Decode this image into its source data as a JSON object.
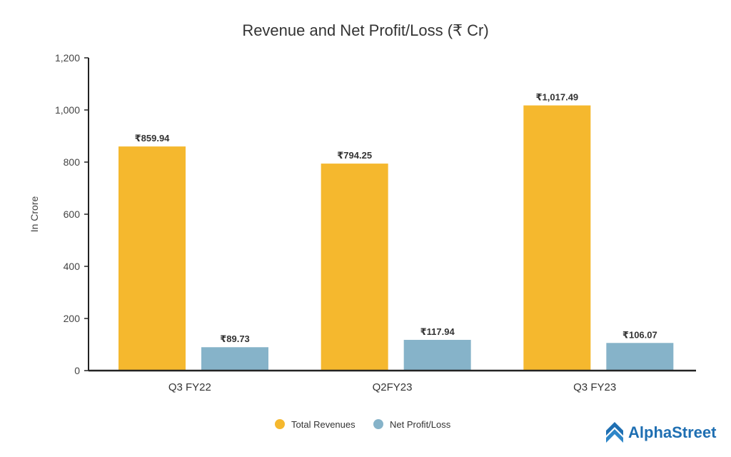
{
  "colors": {
    "revenue": "#F5B82E",
    "profit": "#86B3C9",
    "axis": "#222222",
    "brand": "#1F6FB2"
  },
  "brand": {
    "name": "AlphaStreet",
    "icon": "alphastreet-logo-icon"
  },
  "chart_data": {
    "type": "bar",
    "title": "Revenue and Net Profit/Loss (₹ Cr)",
    "xlabel": "",
    "ylabel": "In Crore",
    "ylim": [
      0,
      1200
    ],
    "yticks": [
      0,
      200,
      400,
      600,
      800,
      1000,
      1200
    ],
    "ytick_labels": [
      "0",
      "200",
      "400",
      "600",
      "800",
      "1,000",
      "1,200"
    ],
    "categories": [
      "Q3 FY22",
      "Q2FY23",
      "Q3 FY23"
    ],
    "series": [
      {
        "name": "Total Revenues",
        "values": [
          859.94,
          794.25,
          1017.49
        ],
        "labels": [
          "₹859.94",
          "₹794.25",
          "₹1,017.49"
        ]
      },
      {
        "name": "Net Profit/Loss",
        "values": [
          89.73,
          117.94,
          106.07
        ],
        "labels": [
          "₹89.73",
          "₹117.94",
          "₹106.07"
        ]
      }
    ],
    "legend": "bottom-center",
    "grid": false
  }
}
